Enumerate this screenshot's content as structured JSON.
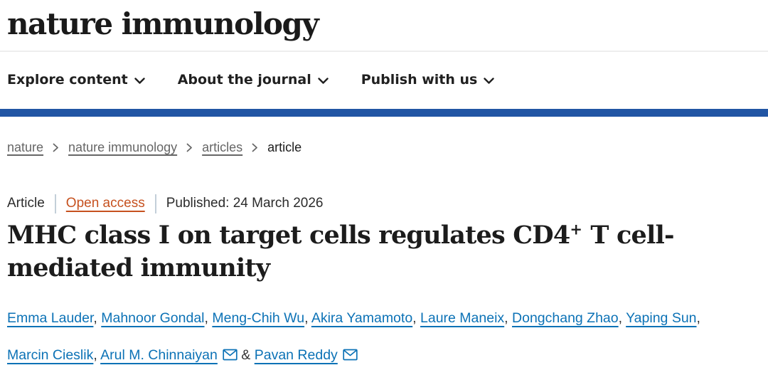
{
  "header": {
    "logo_text": "nature immunology"
  },
  "nav": {
    "items": [
      "Explore content",
      "About the journal",
      "Publish with us"
    ]
  },
  "breadcrumb": {
    "links": [
      "nature",
      "nature immunology",
      "articles"
    ],
    "current": "article"
  },
  "meta": {
    "article_type": "Article",
    "access_label": "Open access",
    "published": "Published: 24 March 2026"
  },
  "title": {
    "line1_pre": "MHC class I on target cells regulates CD4",
    "superscript": "+",
    "line1_post": " T cell-",
    "line2": "mediated immunity"
  },
  "authors": {
    "list": [
      {
        "name": "Emma Lauder",
        "email": false
      },
      {
        "name": "Mahnoor Gondal",
        "email": false
      },
      {
        "name": "Meng-Chih Wu",
        "email": false
      },
      {
        "name": "Akira Yamamoto",
        "email": false
      },
      {
        "name": "Laure Maneix",
        "email": false
      },
      {
        "name": "Dongchang Zhao",
        "email": false
      },
      {
        "name": "Yaping Sun",
        "email": false
      },
      {
        "name": "Marcin Cieslik",
        "email": false
      },
      {
        "name": "Arul M. Chinnaiyan",
        "email": true
      },
      {
        "name": "Pavan Reddy",
        "email": true
      }
    ],
    "comma": ",",
    "ampersand": "&"
  },
  "colors": {
    "brand_bar_blue": "#2155a4",
    "author_link_blue": "#0c72b6",
    "open_access_orange": "#c6511f",
    "breadcrumb_gray": "#666666",
    "text_dark": "#1c1c1c"
  }
}
